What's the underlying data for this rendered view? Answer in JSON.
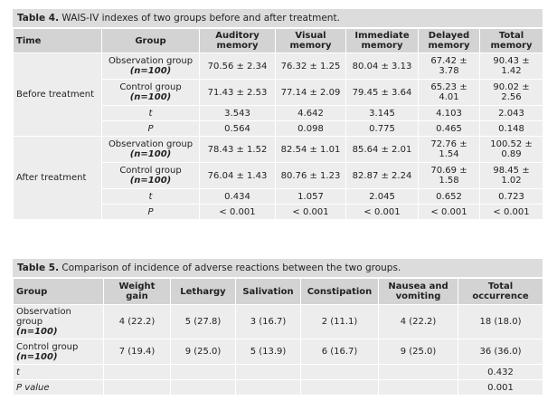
{
  "table4": {
    "caption_label": "Table 4.",
    "caption_text": " WAIS-IV indexes of two groups before and after treatment.",
    "headers": [
      "Time",
      "Group",
      "Auditory memory",
      "Visual memory",
      "Immediate memory",
      "Delayed memory",
      "Total memory"
    ],
    "sections": [
      {
        "time": "Before treatment",
        "rows": [
          {
            "group": "Observation group",
            "n": "(n=100)",
            "values": [
              "70.56 ± 2.34",
              "76.32 ± 1.25",
              "80.04 ± 3.13",
              "67.42 ± 3.78",
              "90.43 ± 1.42"
            ]
          },
          {
            "group": "Control group",
            "n": "(n=100)",
            "values": [
              "71.43 ± 2.53",
              "77.14 ± 2.09",
              "79.45 ± 3.64",
              "65.23 ± 4.01",
              "90.02 ± 2.56"
            ]
          },
          {
            "group": "t",
            "n": "",
            "values": [
              "3.543",
              "4.642",
              "3.145",
              "4.103",
              "2.043"
            ]
          },
          {
            "group": "P",
            "n": "",
            "values": [
              "0.564",
              "0.098",
              "0.775",
              "0.465",
              "0.148"
            ]
          }
        ]
      },
      {
        "time": "After treatment",
        "rows": [
          {
            "group": "Observation group",
            "n": "(n=100)",
            "values": [
              "78.43 ± 1.52",
              "82.54 ± 1.01",
              "85.64 ± 2.01",
              "72.76 ± 1.54",
              "100.52 ± 0.89"
            ]
          },
          {
            "group": "Control group",
            "n": "(n=100)",
            "values": [
              "76.04 ± 1.43",
              "80.76 ± 1.23",
              "82.87 ± 2.24",
              "70.69 ± 1.58",
              "98.45 ± 1.02"
            ]
          },
          {
            "group": "t",
            "n": "",
            "values": [
              "0.434",
              "1.057",
              "2.045",
              "0.652",
              "0.723"
            ]
          },
          {
            "group": "P",
            "n": "",
            "values": [
              "< 0.001",
              "< 0.001",
              "< 0.001",
              "< 0.001",
              "< 0.001"
            ]
          }
        ]
      }
    ]
  },
  "table5": {
    "caption_label": "Table 5.",
    "caption_text": " Comparison of incidence of adverse reactions between the two groups.",
    "headers": [
      "Group",
      "Weight gain",
      "Lethargy",
      "Salivation",
      "Constipation",
      "Nausea and vomiting",
      "Total occurrence"
    ],
    "rows": [
      {
        "group": "Observation group",
        "n": "(n=100)",
        "values": [
          "4 (22.2)",
          "5 (27.8)",
          "3 (16.7)",
          "2 (11.1)",
          "4 (22.2)",
          "18 (18.0)"
        ]
      },
      {
        "group": "Control group",
        "n": "(n=100)",
        "values": [
          "7 (19.4)",
          "9 (25.0)",
          "5 (13.9)",
          "6 (16.7)",
          "9 (25.0)",
          "36 (36.0)"
        ]
      },
      {
        "group": "t",
        "n": "",
        "values": [
          "",
          "",
          "",
          "",
          "",
          "0.432"
        ]
      },
      {
        "group": "P value",
        "n": "",
        "values": [
          "",
          "",
          "",
          "",
          "",
          "0.001"
        ]
      }
    ]
  }
}
